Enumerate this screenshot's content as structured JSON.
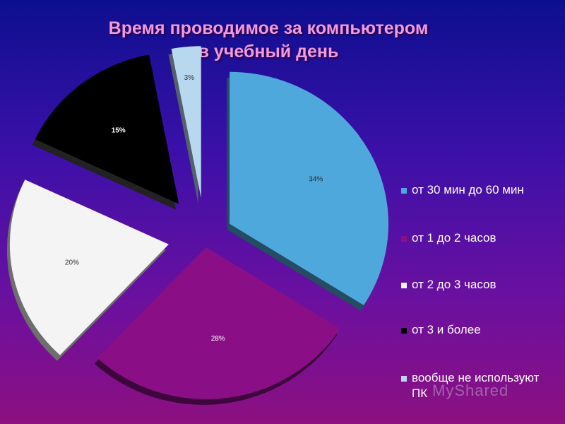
{
  "chart_data": {
    "type": "pie",
    "title_lines": [
      "Время проводимое за компьютером",
      "в учебный день"
    ],
    "categories": [
      "от 30 мин до 60 мин",
      "от 1 до 2 часов",
      "от 2 до 3 часов",
      "от 3 и более",
      "вообще не используют ПК"
    ],
    "values": [
      34,
      28,
      20,
      15,
      3
    ],
    "data_labels": [
      "34%",
      "28%",
      "20%",
      "15%",
      "3%"
    ],
    "colors": [
      "#4fa8dc",
      "#8a0f86",
      "#f4f4f4",
      "#000000",
      "#b8d8f0"
    ],
    "exploded": true,
    "legend_position": "right"
  },
  "watermark": "MyShared"
}
